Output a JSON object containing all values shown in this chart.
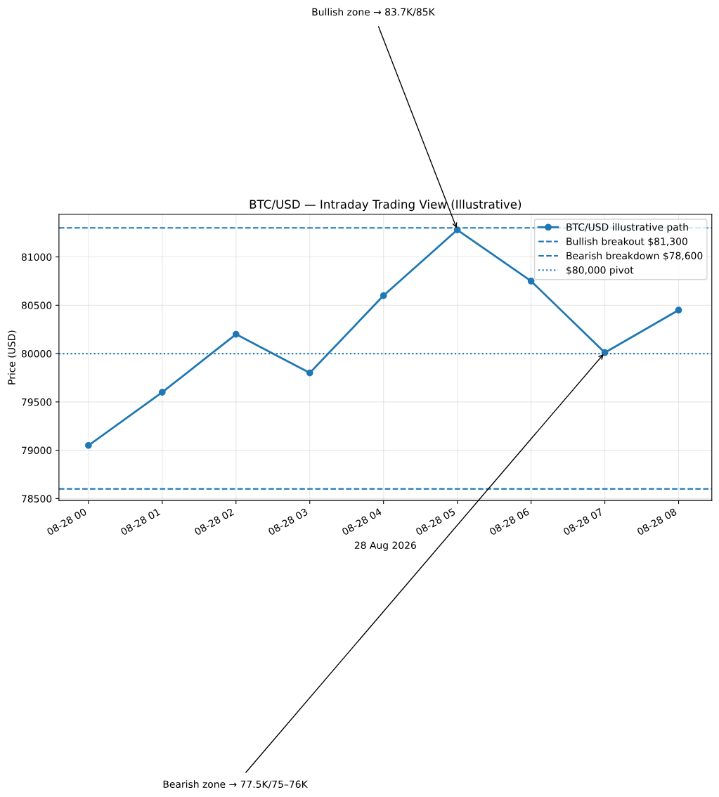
{
  "chart_data": {
    "type": "line",
    "title": "BTC/USD — Intraday Trading View (Illustrative)",
    "xlabel": "28 Aug 2026",
    "ylabel": "Price (USD)",
    "x": [
      "2026-08-28T00:00",
      "2026-08-28T01:00",
      "2026-08-28T02:00",
      "2026-08-28T03:00",
      "2026-08-28T04:00",
      "2026-08-28T05:00",
      "2026-08-28T06:00",
      "2026-08-28T07:00",
      "2026-08-28T08:00"
    ],
    "series": [
      {
        "name": "BTC/USD illustrative path",
        "color": "#1f77b4",
        "values": [
          79050,
          79600,
          80200,
          79800,
          80600,
          81280,
          80750,
          80010,
          80450
        ]
      }
    ],
    "ref_lines": [
      {
        "axis": "y",
        "value": 81300,
        "label": "Bullish breakout $81,300",
        "color": "#1f77b4",
        "line_style": "dashed"
      },
      {
        "axis": "y",
        "value": 78600,
        "label": "Bearish breakdown $78,600",
        "color": "#1f77b4",
        "line_style": "dashed"
      },
      {
        "axis": "y",
        "value": 80000,
        "label": "$80,000 pivot",
        "color": "#1f77b4",
        "line_style": "dotted"
      }
    ],
    "annotations": [
      {
        "text": "Bullish zone → 83.7K/85K",
        "x": "2026-08-28T05:00",
        "y": 81280
      },
      {
        "text": "Bearish zone → 77.5K/75–76K",
        "x": "2026-08-28T07:00",
        "y": 80010
      }
    ],
    "xlim": [
      "2026-08-27T23:36",
      "2026-08-28T08:27"
    ],
    "ylim": [
      78480,
      81440
    ],
    "xticks": [
      {
        "value": "2026-08-28T00:00",
        "label": "08-28 00"
      },
      {
        "value": "2026-08-28T01:00",
        "label": "08-28 01"
      },
      {
        "value": "2026-08-28T02:00",
        "label": "08-28 02"
      },
      {
        "value": "2026-08-28T03:00",
        "label": "08-28 03"
      },
      {
        "value": "2026-08-28T04:00",
        "label": "08-28 04"
      },
      {
        "value": "2026-08-28T05:00",
        "label": "08-28 05"
      },
      {
        "value": "2026-08-28T06:00",
        "label": "08-28 06"
      },
      {
        "value": "2026-08-28T07:00",
        "label": "08-28 07"
      },
      {
        "value": "2026-08-28T08:00",
        "label": "08-28 08"
      }
    ],
    "yticks": [
      78500,
      79000,
      79500,
      80000,
      80500,
      81000
    ],
    "grid": true,
    "legend": "top right",
    "marker": "circle",
    "line_style": "solid"
  }
}
